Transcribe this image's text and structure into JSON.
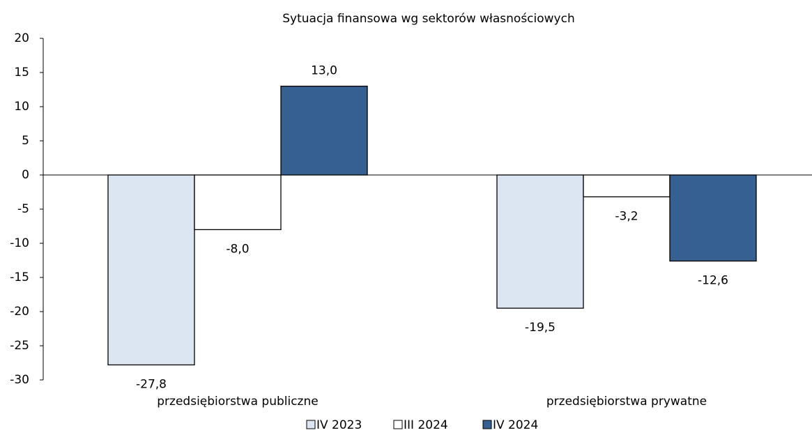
{
  "chart_data": {
    "type": "bar",
    "title": "Sytuacja finansowa wg sektorów własnościowych",
    "categories": [
      "przedsiębiorstwa publiczne",
      "przedsiębiorstwa prywatne"
    ],
    "series": [
      {
        "name": "IV 2023",
        "color": "#dce6f2",
        "values": [
          -27.8,
          -19.5
        ],
        "value_labels": [
          "-27,8",
          "-19,5"
        ]
      },
      {
        "name": "III 2024",
        "color": "#ffffff",
        "values": [
          -8.0,
          -3.2
        ],
        "value_labels": [
          "-8,0",
          "-3,2"
        ]
      },
      {
        "name": "IV 2024",
        "color": "#356091",
        "values": [
          13.0,
          -12.6
        ],
        "value_labels": [
          "13,0",
          "-12,6"
        ]
      }
    ],
    "ylim": [
      -30,
      20
    ],
    "yticks": [
      -30,
      -25,
      -20,
      -15,
      -10,
      -5,
      0,
      5,
      10,
      15,
      20
    ],
    "legend": "bottom"
  }
}
